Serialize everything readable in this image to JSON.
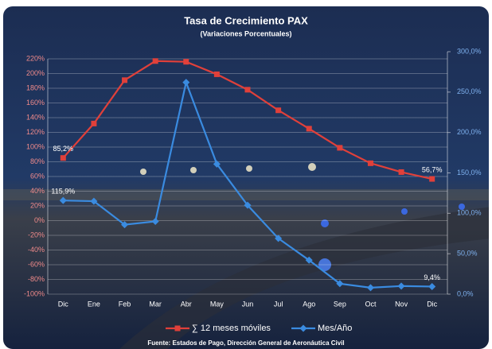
{
  "chart_data": {
    "type": "line",
    "title": "Tasa de Crecimiento PAX",
    "subtitle": "(Variaciones Porcentuales)",
    "source": "Fuente: Estados de Pago, Dirección General de Aeronáutica Civil",
    "categories": [
      "Dic",
      "Ene",
      "Feb",
      "Mar",
      "Abr",
      "May",
      "Jun",
      "Jul",
      "Ago",
      "Sep",
      "Oct",
      "Nov",
      "Dic"
    ],
    "series": [
      {
        "name": "∑ 12 meses móviles",
        "color": "#e0403a",
        "marker": "square",
        "axis": "y",
        "values": [
          85.2,
          132,
          191,
          217,
          216,
          199,
          178,
          150,
          125,
          99,
          78,
          66,
          56.7
        ],
        "value_labels": [
          "85,2%",
          null,
          null,
          null,
          null,
          null,
          null,
          null,
          null,
          null,
          null,
          null,
          "56,7%"
        ]
      },
      {
        "name": "Mes/Año",
        "color": "#3a8be0",
        "marker": "diamond",
        "axis": "y2",
        "values": [
          115.9,
          115,
          86,
          90,
          262,
          161,
          110,
          69,
          42,
          13,
          8,
          10,
          9.4
        ],
        "value_labels": [
          "115,9%",
          null,
          null,
          null,
          null,
          null,
          null,
          null,
          null,
          null,
          null,
          null,
          "9,4%"
        ]
      }
    ],
    "ylim": [
      -100,
      220
    ],
    "yticks": [
      {
        "value": -100,
        "label": "-100%"
      },
      {
        "value": -80,
        "label": "-80%"
      },
      {
        "value": -60,
        "label": "-60%"
      },
      {
        "value": -40,
        "label": "-40%"
      },
      {
        "value": -20,
        "label": "-20%"
      },
      {
        "value": 0,
        "label": "0%"
      },
      {
        "value": 20,
        "label": "20%"
      },
      {
        "value": 40,
        "label": "40%"
      },
      {
        "value": 60,
        "label": "60%"
      },
      {
        "value": 80,
        "label": "80%"
      },
      {
        "value": 100,
        "label": "100%"
      },
      {
        "value": 120,
        "label": "120%"
      },
      {
        "value": 140,
        "label": "140%"
      },
      {
        "value": 160,
        "label": "160%"
      },
      {
        "value": 180,
        "label": "180%"
      },
      {
        "value": 200,
        "label": "200%"
      },
      {
        "value": 220,
        "label": "220%"
      }
    ],
    "y2lim": [
      0,
      300
    ],
    "y2ticks": [
      {
        "value": 0,
        "label": "0,0%"
      },
      {
        "value": 50,
        "label": "50,0%"
      },
      {
        "value": 100,
        "label": "100,0%"
      },
      {
        "value": 150,
        "label": "150,0%"
      },
      {
        "value": 200,
        "label": "200,0%"
      },
      {
        "value": 250,
        "label": "250,0%"
      },
      {
        "value": 300,
        "label": "300,0%"
      }
    ],
    "grid": true,
    "legend": "bottom"
  }
}
